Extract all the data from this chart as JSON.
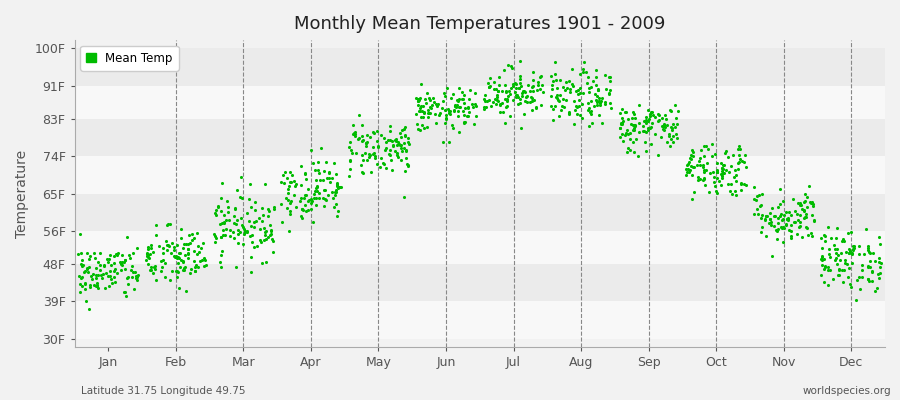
{
  "title": "Monthly Mean Temperatures 1901 - 2009",
  "ylabel": "Temperature",
  "bottom_left": "Latitude 31.75 Longitude 49.75",
  "bottom_right": "worldspecies.org",
  "legend_label": "Mean Temp",
  "dot_color": "#00bb00",
  "background_color": "#f2f2f2",
  "band_color_light": "#f8f8f8",
  "band_color_dark": "#ebebeb",
  "ytick_labels": [
    "30F",
    "39F",
    "48F",
    "56F",
    "65F",
    "74F",
    "83F",
    "91F",
    "100F"
  ],
  "ytick_values": [
    30,
    39,
    48,
    56,
    65,
    74,
    83,
    91,
    100
  ],
  "ylim": [
    28,
    102
  ],
  "months": [
    "Jan",
    "Feb",
    "Mar",
    "Apr",
    "May",
    "Jun",
    "Jul",
    "Aug",
    "Sep",
    "Oct",
    "Nov",
    "Dec"
  ],
  "mean_temps_F": {
    "1": 46.0,
    "2": 49.5,
    "3": 57.5,
    "4": 66.0,
    "5": 76.0,
    "6": 85.0,
    "7": 89.5,
    "8": 88.0,
    "9": 81.0,
    "10": 71.0,
    "11": 59.5,
    "12": 49.0
  },
  "spread_F": {
    "1": 4.5,
    "2": 5.0,
    "3": 5.5,
    "4": 5.0,
    "5": 4.5,
    "6": 3.5,
    "7": 4.0,
    "8": 4.5,
    "9": 4.0,
    "10": 4.5,
    "11": 4.5,
    "12": 5.0
  },
  "n_points": 109
}
